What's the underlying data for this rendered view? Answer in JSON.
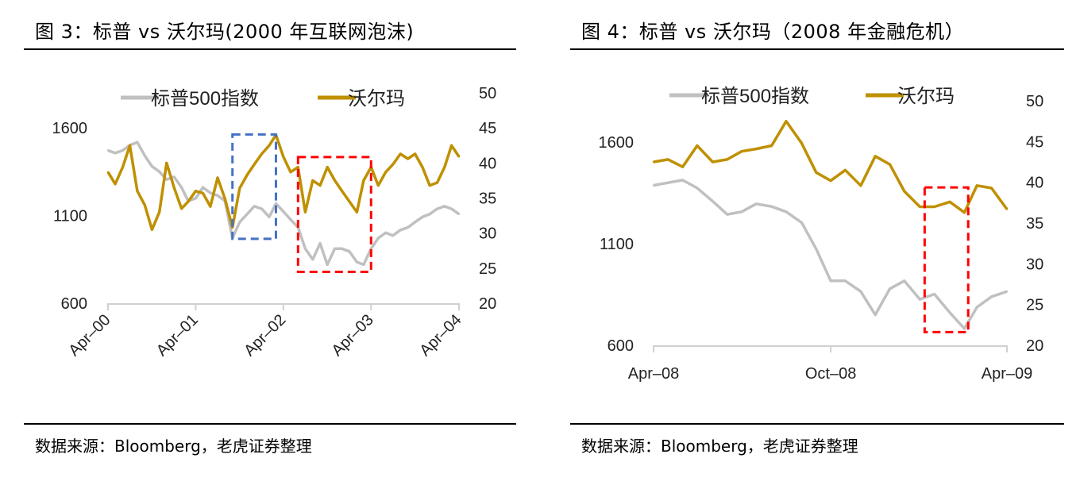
{
  "chart_data": [
    {
      "type": "line",
      "title": "图 3：标普 vs 沃尔玛(2000 年互联网泡沫)",
      "source": "数据来源：Bloomberg，老虎证券整理",
      "x": [
        "2000-04",
        "2000-05",
        "2000-06",
        "2000-07",
        "2000-08",
        "2000-09",
        "2000-10",
        "2000-11",
        "2000-12",
        "2001-01",
        "2001-02",
        "2001-03",
        "2001-04",
        "2001-05",
        "2001-06",
        "2001-07",
        "2001-08",
        "2001-09",
        "2001-10",
        "2001-11",
        "2001-12",
        "2002-01",
        "2002-02",
        "2002-03",
        "2002-04",
        "2002-05",
        "2002-06",
        "2002-07",
        "2002-08",
        "2002-09",
        "2002-10",
        "2002-11",
        "2002-12",
        "2003-01",
        "2003-02",
        "2003-03",
        "2003-04",
        "2003-05",
        "2003-06",
        "2003-07",
        "2003-08",
        "2003-09",
        "2003-10",
        "2003-11",
        "2003-12",
        "2004-01",
        "2004-02",
        "2004-03",
        "2004-04"
      ],
      "x_ticks": [
        "2000-04",
        "2001-04",
        "2002-04",
        "2003-04",
        "2004-04"
      ],
      "x_tick_labels": [
        "Apr–00",
        "Apr–01",
        "Apr–02",
        "Apr–03",
        "Apr–04"
      ],
      "y_left": {
        "range": [
          600,
          1600
        ],
        "ticks": [
          "600",
          "1100",
          "1600"
        ]
      },
      "y_right": {
        "range": [
          20,
          50
        ],
        "ticks": [
          "20",
          "25",
          "30",
          "35",
          "40",
          "45",
          "50"
        ]
      },
      "series": [
        {
          "name": "标普500指数",
          "axis": "left",
          "color": "#c0c0c0",
          "values": [
            1471,
            1456,
            1471,
            1501,
            1517,
            1441,
            1380,
            1350,
            1305,
            1320,
            1260,
            1183,
            1198,
            1260,
            1229,
            1214,
            1183,
            971,
            1062,
            1108,
            1153,
            1138,
            1092,
            1168,
            1123,
            1077,
            1032,
            911,
            850,
            941,
            820,
            911,
            911,
            895,
            835,
            820,
            911,
            971,
            1002,
            986,
            1017,
            1032,
            1062,
            1092,
            1108,
            1138,
            1153,
            1138,
            1108
          ]
        },
        {
          "name": "沃尔玛",
          "axis": "right",
          "color": "#bf9000",
          "values": [
            38.7,
            37,
            39.4,
            42.5,
            36,
            34,
            30.5,
            33,
            40,
            36.5,
            33.5,
            34.5,
            36,
            35.7,
            33.8,
            37.9,
            34.9,
            30.8,
            36.4,
            38.3,
            39.8,
            41.3,
            42.5,
            44,
            40.9,
            38.7,
            39.4,
            33,
            37.5,
            36.8,
            39.4,
            37.5,
            36,
            34.5,
            33,
            37.5,
            39.4,
            36.8,
            38.7,
            39.8,
            41.3,
            40.6,
            41.3,
            39.4,
            36.8,
            37.2,
            39.4,
            42.5,
            40.9
          ]
        }
      ],
      "highlights": [
        {
          "color": "#4472c4",
          "x_range": [
            "2001-09",
            "2002-03"
          ],
          "y_left_range": [
            967,
            1562
          ]
        },
        {
          "color": "#ff0000",
          "x_range": [
            "2002-06",
            "2003-04"
          ],
          "y_left_range": [
            779,
            1433
          ]
        }
      ],
      "legend": "top"
    },
    {
      "type": "line",
      "title": "图 4：标普 vs 沃尔玛（2008 年金融危机）",
      "source": "数据来源：Bloomberg，老虎证券整理",
      "x": [
        "2008-04-01",
        "2008-04-16",
        "2008-05-01",
        "2008-05-16",
        "2008-06-01",
        "2008-06-16",
        "2008-07-01",
        "2008-07-16",
        "2008-08-01",
        "2008-08-16",
        "2008-09-01",
        "2008-09-16",
        "2008-10-01",
        "2008-10-16",
        "2008-11-01",
        "2008-11-16",
        "2008-12-01",
        "2008-12-16",
        "2009-01-01",
        "2009-01-16",
        "2009-02-01",
        "2009-02-16",
        "2009-03-01",
        "2009-03-16",
        "2009-04-01"
      ],
      "x_ticks": [
        "2008-04-01",
        "2008-10-01",
        "2009-04-01"
      ],
      "x_tick_labels": [
        "Apr–08",
        "Oct–08",
        "Apr–09"
      ],
      "y_left": {
        "range": [
          600,
          1600
        ],
        "ticks": [
          "600",
          "1100",
          "1600"
        ]
      },
      "y_right": {
        "range": [
          20,
          50
        ],
        "ticks": [
          "20",
          "25",
          "30",
          "35",
          "40",
          "45",
          "50"
        ]
      },
      "series": [
        {
          "name": "标普500指数",
          "axis": "left",
          "color": "#c0c0c0",
          "values": [
            1387,
            1400,
            1413,
            1374,
            1309,
            1244,
            1257,
            1296,
            1283,
            1257,
            1204,
            1074,
            917,
            917,
            865,
            750,
            878,
            917,
            826,
            852,
            761,
            682,
            787,
            839,
            865
          ]
        },
        {
          "name": "沃尔玛",
          "axis": "right",
          "color": "#bf9000",
          "values": [
            42.5,
            42.8,
            41.9,
            44.5,
            42.5,
            42.8,
            43.8,
            44.1,
            44.5,
            47.5,
            44.8,
            41.2,
            40.2,
            41.5,
            39.6,
            43.2,
            42.2,
            38.9,
            37,
            37,
            37.6,
            36.3,
            39.6,
            39.3,
            36.7
          ]
        }
      ],
      "highlights": [
        {
          "color": "#ff0000",
          "x_range": [
            "2009-01-06",
            "2009-02-20"
          ],
          "y_left_range": [
            665,
            1377
          ]
        }
      ],
      "legend": "top"
    }
  ]
}
